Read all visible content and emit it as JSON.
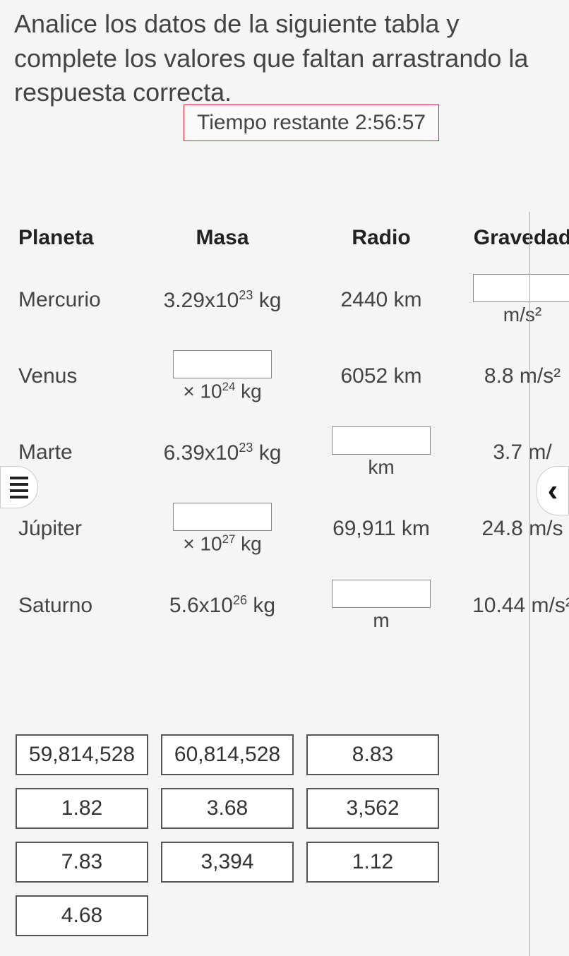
{
  "instruction": "Analice los datos de la siguiente tabla y complete los valores que faltan arrastrando la respuesta correcta.",
  "timer_label": "Tiempo restante",
  "timer_value": "2:56:57",
  "headers": {
    "planet": "Planeta",
    "mass": "Masa",
    "radius": "Radio",
    "gravity": "Gravedad"
  },
  "rows": [
    {
      "planet": "Mercurio",
      "mass_text": "3.29x10",
      "mass_exp": "23",
      "mass_unit": "kg",
      "radius_text": "2440 km",
      "gravity_blank": true,
      "gravity_unit": "m/s²"
    },
    {
      "planet": "Venus",
      "mass_blank": true,
      "mass_under": "× 10",
      "mass_under_exp": "24",
      "mass_under_unit": "kg",
      "radius_text": "6052 km",
      "gravity_text": "8.8 m/s²"
    },
    {
      "planet": "Marte",
      "mass_text": "6.39x10",
      "mass_exp": "23",
      "mass_unit": "kg",
      "radius_blank": true,
      "radius_unit": "km",
      "gravity_text": "3.7 m/"
    },
    {
      "planet": "Júpiter",
      "mass_blank": true,
      "mass_under": "× 10",
      "mass_under_exp": "27",
      "mass_under_unit": "kg",
      "radius_text": "69,911 km",
      "gravity_text": "24.8 m/s"
    },
    {
      "planet": "Saturno",
      "mass_text": "5.6x10",
      "mass_exp": "26",
      "mass_unit": "kg",
      "radius_blank": true,
      "radius_unit": "m",
      "gravity_text": "10.44 m/s²"
    }
  ],
  "options": [
    "59,814,528",
    "60,814,528",
    "8.83",
    "1.82",
    "3.68",
    "3,562",
    "7.83",
    "3,394",
    "1.12",
    "4.68"
  ],
  "colors": {
    "timer_border": "#d23",
    "text": "#444",
    "box_border": "#555",
    "bg": "#f5f5f5"
  }
}
